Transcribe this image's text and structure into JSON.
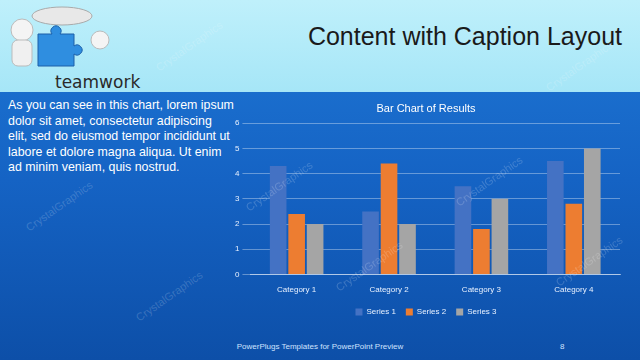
{
  "slide": {
    "title": "Content with Caption Layout",
    "logo_text": "teamwork",
    "caption": "As you can see in this chart, lorem ipsum dolor sit amet, consectetur adipiscing elit, sed do eiusmod tempor incididunt ut labore et dolore magna aliqua. Ut enim ad minim veniam, quis nostrud.",
    "footer": "PowerPlugs Templates for PowerPoint Preview",
    "page_number": "8",
    "watermark": "CrystalGraphics"
  },
  "chart_data": {
    "type": "bar",
    "title": "Bar Chart of Results",
    "categories": [
      "Category 1",
      "Category 2",
      "Category 3",
      "Category 4"
    ],
    "series": [
      {
        "name": "Series 1",
        "color": "#4472c4",
        "values": [
          4.3,
          2.5,
          3.5,
          4.5
        ]
      },
      {
        "name": "Series 2",
        "color": "#ed7d31",
        "values": [
          2.4,
          4.4,
          1.8,
          2.8
        ]
      },
      {
        "name": "Series 3",
        "color": "#a5a5a5",
        "values": [
          2.0,
          2.0,
          3.0,
          5.0
        ]
      }
    ],
    "ylim": [
      0,
      6
    ],
    "yticks": [
      0,
      1,
      2,
      3,
      4,
      5,
      6
    ],
    "grid": true,
    "legend": "bottom"
  }
}
